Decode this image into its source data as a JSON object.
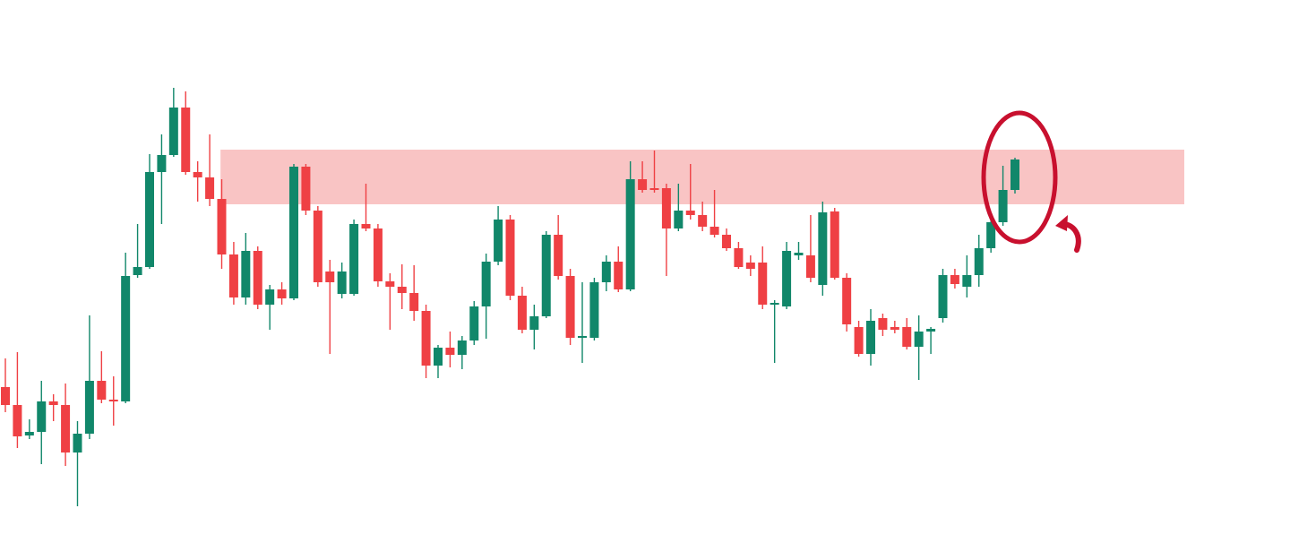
{
  "chart_data": {
    "type": "candlestick",
    "up_color": "#11876a",
    "down_color": "#ef4044",
    "ylim": [
      0,
      606
    ],
    "zone": {
      "low": 378,
      "high": 439,
      "color": "#f9c4c4"
    },
    "open": [
      174,
      154,
      120,
      124,
      158,
      154,
      101,
      122,
      181,
      160,
      158,
      299,
      308,
      414,
      433,
      486,
      414,
      408,
      384,
      322,
      274,
      326,
      266,
      283,
      273,
      420,
      371,
      303,
      278,
      278,
      356,
      351,
      292,
      286,
      279,
      259,
      198,
      218,
      210,
      226,
      264,
      314,
      361,
      276,
      238,
      253,
      344,
      298,
      229,
      229,
      291,
      314,
      283,
      406,
      396,
      396,
      351,
      371,
      366,
      353,
      344,
      329,
      313,
      313,
      266,
      264,
      321,
      321,
      288,
      370,
      296,
      241,
      211,
      251,
      241,
      241,
      219,
      236,
      251,
      299,
      286,
      299,
      329,
      358,
      394
    ],
    "high": [
      206,
      213,
      138,
      181,
      166,
      178,
      136,
      254,
      214,
      186,
      324,
      356,
      434,
      456,
      508,
      504,
      426,
      456,
      406,
      336,
      346,
      331,
      288,
      291,
      423,
      423,
      376,
      316,
      313,
      361,
      401,
      356,
      301,
      311,
      310,
      266,
      221,
      236,
      231,
      270,
      323,
      376,
      366,
      286,
      266,
      348,
      366,
      306,
      291,
      296,
      321,
      331,
      426,
      426,
      438,
      401,
      401,
      423,
      381,
      394,
      351,
      336,
      321,
      331,
      271,
      336,
      336,
      366,
      381,
      374,
      301,
      248,
      261,
      256,
      248,
      251,
      254,
      241,
      306,
      306,
      321,
      344,
      366,
      421,
      430
    ],
    "low": [
      146,
      106,
      116,
      88,
      136,
      86,
      41,
      116,
      156,
      131,
      156,
      296,
      306,
      356,
      431,
      411,
      381,
      376,
      306,
      266,
      266,
      261,
      238,
      266,
      271,
      366,
      286,
      211,
      273,
      276,
      348,
      286,
      238,
      261,
      248,
      184,
      184,
      196,
      194,
      221,
      228,
      310,
      271,
      234,
      216,
      251,
      294,
      221,
      201,
      226,
      281,
      280,
      281,
      391,
      391,
      298,
      348,
      361,
      348,
      341,
      326,
      306,
      298,
      261,
      201,
      261,
      316,
      291,
      276,
      294,
      236,
      208,
      198,
      231,
      234,
      216,
      182,
      211,
      246,
      284,
      274,
      286,
      324,
      354,
      390
    ],
    "close": [
      154,
      119,
      124,
      158,
      154,
      101,
      122,
      181,
      160,
      158,
      298,
      308,
      414,
      433,
      486,
      414,
      408,
      384,
      322,
      274,
      326,
      266,
      283,
      273,
      420,
      371,
      291,
      291,
      303,
      356,
      351,
      292,
      286,
      279,
      259,
      198,
      218,
      210,
      226,
      264,
      314,
      361,
      276,
      238,
      253,
      344,
      298,
      229,
      231,
      291,
      314,
      283,
      406,
      394,
      394,
      351,
      371,
      366,
      353,
      344,
      329,
      308,
      306,
      266,
      268,
      326,
      324,
      296,
      369,
      296,
      244,
      211,
      248,
      238,
      238,
      219,
      236,
      239,
      299,
      289,
      299,
      329,
      358,
      394,
      428
    ]
  }
}
